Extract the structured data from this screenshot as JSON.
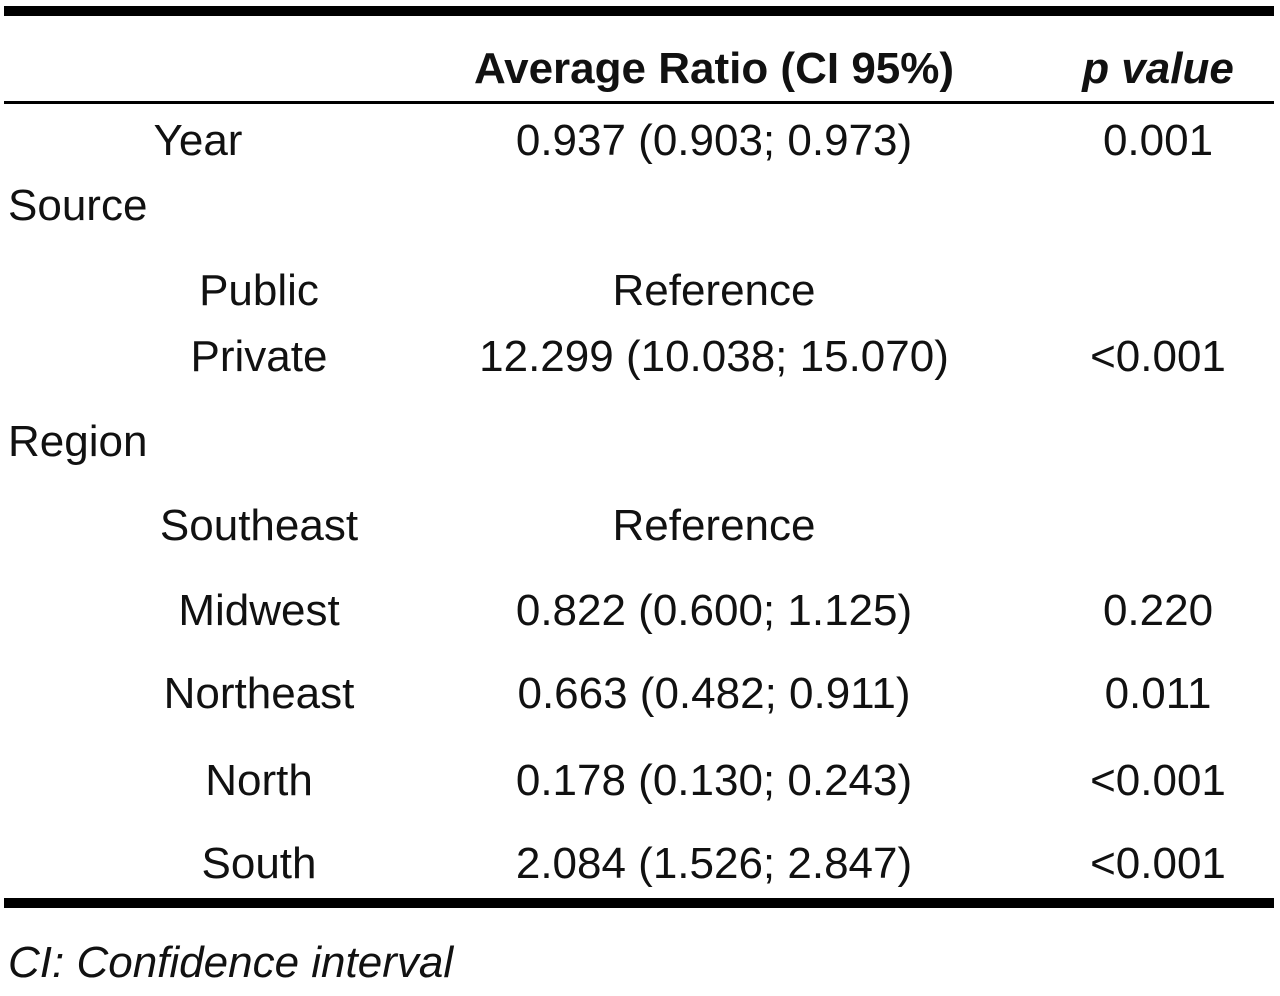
{
  "table": {
    "headers": {
      "ratio": "Average Ratio (CI 95%)",
      "p": "p value"
    },
    "rows": [
      {
        "label": "Year",
        "ratio": "0.937 (0.903; 0.973)",
        "p": "0.001"
      },
      {
        "label": "Source",
        "ratio": "",
        "p": ""
      },
      {
        "label": "Public",
        "ratio": "Reference",
        "p": ""
      },
      {
        "label": "Private",
        "ratio": "12.299 (10.038; 15.070)",
        "p": "<0.001"
      },
      {
        "label": "Region",
        "ratio": "",
        "p": ""
      },
      {
        "label": "Southeast",
        "ratio": "Reference",
        "p": ""
      },
      {
        "label": "Midwest",
        "ratio": "0.822 (0.600; 1.125)",
        "p": "0.220"
      },
      {
        "label": "Northeast",
        "ratio": "0.663 (0.482; 0.911)",
        "p": "0.011"
      },
      {
        "label": "North",
        "ratio": "0.178 (0.130; 0.243)",
        "p": "<0.001"
      },
      {
        "label": "South",
        "ratio": "2.084 (1.526; 2.847)",
        "p": "<0.001"
      }
    ]
  },
  "footnote": "CI: Confidence interval"
}
